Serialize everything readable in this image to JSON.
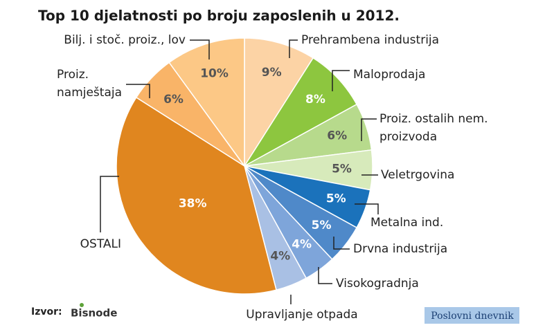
{
  "chart_data": {
    "type": "pie",
    "title": "Top 10 djelatnosti po broju zaposlenih u 2012.",
    "categories": [
      "Prehrambena industrija",
      "Maloprodaja",
      "Proiz. ostalih nem. proizvoda",
      "Veletrgovina",
      "Metalna ind.",
      "Drvna industrija",
      "Visokogradnja",
      "Upravljanje otpada",
      "OSTALI",
      "Proiz. namještaja",
      "Bilj. i stoč. proiz., lov"
    ],
    "values": [
      9,
      8,
      6,
      5,
      5,
      5,
      4,
      4,
      38,
      6,
      10
    ],
    "value_labels": [
      "9%",
      "8%",
      "6%",
      "5%",
      "5%",
      "5%",
      "4%",
      "4%",
      "38%",
      "6%",
      "10%"
    ],
    "colors": [
      "#fcd3a5",
      "#8dc63f",
      "#b7da8c",
      "#d7eabb",
      "#1b72bb",
      "#4f89c9",
      "#7ea5da",
      "#a9c0e4",
      "#e0861f",
      "#f9b468",
      "#fcc886"
    ],
    "source_label": "Izvor:",
    "source": "Bisnode",
    "publisher": "Poslovni dnevnik"
  }
}
